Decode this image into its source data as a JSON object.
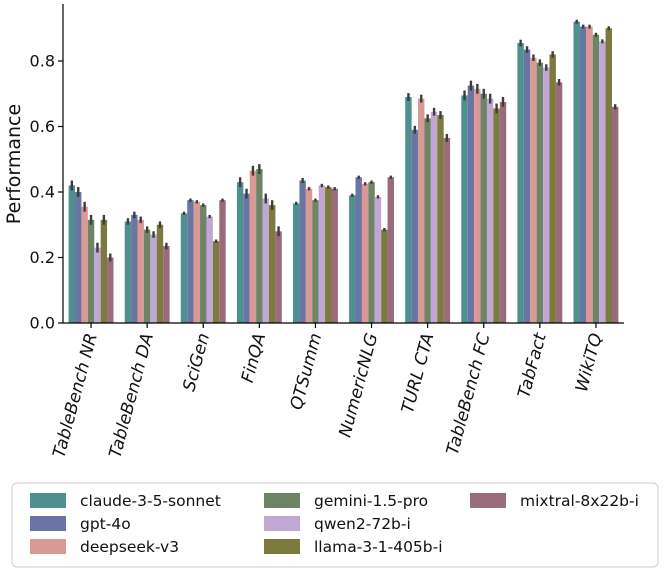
{
  "chart_data": {
    "type": "bar",
    "title": "",
    "xlabel": "",
    "ylabel": "Performance",
    "ylim": [
      0,
      0.97
    ],
    "yticks": [
      0.0,
      0.2,
      0.4,
      0.6,
      0.8
    ],
    "ytick_labels": [
      "0.0",
      "0.2",
      "0.4",
      "0.6",
      "0.8"
    ],
    "grid": false,
    "legend_position": "bottom",
    "categories": [
      "TableBench NR",
      "TableBench DA",
      "SciGen",
      "FinQA",
      "QTSumm",
      "NumericNLG",
      "TURL CTA",
      "TableBench FC",
      "TabFact",
      "WikiTQ"
    ],
    "series": [
      {
        "name": "claude-3-5-sonnet",
        "color": "#4e9090",
        "values": [
          0.42,
          0.31,
          0.335,
          0.43,
          0.365,
          0.39,
          0.69,
          0.695,
          0.855,
          0.92
        ],
        "errors": [
          0.015,
          0.01,
          0.005,
          0.015,
          0.005,
          0.005,
          0.012,
          0.015,
          0.01,
          0.006
        ]
      },
      {
        "name": "gpt-4o",
        "color": "#6b75a4",
        "values": [
          0.4,
          0.33,
          0.375,
          0.395,
          0.435,
          0.445,
          0.59,
          0.725,
          0.835,
          0.905
        ],
        "errors": [
          0.015,
          0.01,
          0.005,
          0.015,
          0.008,
          0.005,
          0.012,
          0.015,
          0.01,
          0.006
        ]
      },
      {
        "name": "deepseek-v3",
        "color": "#d99a96",
        "values": [
          0.355,
          0.315,
          0.37,
          0.465,
          0.41,
          0.425,
          0.685,
          0.715,
          0.81,
          0.905
        ],
        "errors": [
          0.015,
          0.01,
          0.005,
          0.015,
          0.005,
          0.005,
          0.012,
          0.015,
          0.01,
          0.006
        ]
      },
      {
        "name": "gemini-1.5-pro",
        "color": "#6e8466",
        "values": [
          0.315,
          0.285,
          0.36,
          0.47,
          0.375,
          0.43,
          0.625,
          0.7,
          0.795,
          0.88
        ],
        "errors": [
          0.015,
          0.01,
          0.005,
          0.015,
          0.005,
          0.005,
          0.012,
          0.015,
          0.01,
          0.006
        ]
      },
      {
        "name": "qwen2-72b-i",
        "color": "#c1a8d4",
        "values": [
          0.23,
          0.27,
          0.325,
          0.38,
          0.42,
          0.385,
          0.645,
          0.685,
          0.78,
          0.86
        ],
        "errors": [
          0.015,
          0.01,
          0.005,
          0.015,
          0.005,
          0.005,
          0.012,
          0.015,
          0.01,
          0.006
        ]
      },
      {
        "name": "llama-3-1-405b-i",
        "color": "#7c7a3e",
        "values": [
          0.315,
          0.3,
          0.25,
          0.36,
          0.415,
          0.285,
          0.635,
          0.655,
          0.82,
          0.9
        ],
        "errors": [
          0.015,
          0.01,
          0.005,
          0.015,
          0.005,
          0.005,
          0.012,
          0.015,
          0.01,
          0.006
        ]
      },
      {
        "name": "mixtral-8x22b-i",
        "color": "#9a6b7a",
        "values": [
          0.2,
          0.235,
          0.375,
          0.28,
          0.41,
          0.445,
          0.565,
          0.675,
          0.735,
          0.66
        ],
        "errors": [
          0.012,
          0.01,
          0.005,
          0.015,
          0.005,
          0.005,
          0.012,
          0.015,
          0.01,
          0.008
        ]
      }
    ]
  }
}
